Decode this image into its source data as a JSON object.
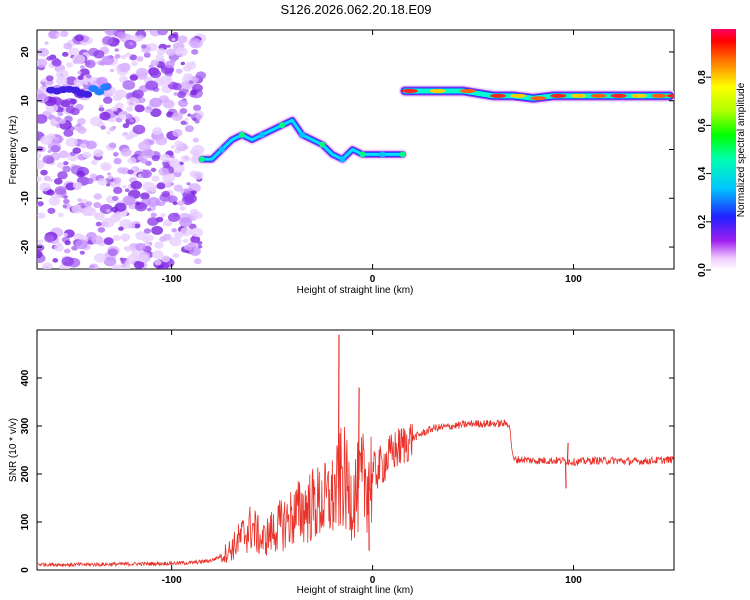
{
  "title": "S126.2026.062.20.18.E09",
  "chart_data": [
    {
      "type": "heatmap",
      "xlabel": "Height of straight line (km)",
      "ylabel": "Frequency (Hz)",
      "xlim": [
        -167,
        150
      ],
      "ylim": [
        -24.5,
        24.5
      ],
      "xticks": [
        -100,
        0,
        100
      ],
      "yticks": [
        -20,
        -10,
        0,
        10,
        20
      ],
      "colorbar": {
        "label": "Normalized spectral amplitude",
        "range": [
          0,
          1
        ],
        "ticks": [
          "0.0",
          "0.2",
          "0.4",
          "0.6",
          "0.8"
        ]
      },
      "track": {
        "segment1": [
          [
            -85,
            -2
          ],
          [
            -80,
            -2
          ],
          [
            -75,
            0
          ],
          [
            -70,
            2
          ],
          [
            -65,
            3
          ],
          [
            -60,
            2
          ],
          [
            -55,
            3
          ],
          [
            -50,
            4
          ],
          [
            -45,
            5
          ],
          [
            -40,
            6
          ],
          [
            -35,
            3
          ],
          [
            -30,
            2
          ],
          [
            -25,
            1
          ],
          [
            -20,
            -1
          ],
          [
            -15,
            -2
          ],
          [
            -10,
            0
          ],
          [
            -5,
            -1
          ],
          [
            0,
            -1
          ],
          [
            5,
            -1
          ],
          [
            10,
            -1
          ],
          [
            15,
            -1
          ]
        ],
        "segment2": [
          [
            16,
            12
          ],
          [
            30,
            12
          ],
          [
            45,
            12
          ],
          [
            60,
            11
          ],
          [
            70,
            11
          ],
          [
            80,
            10.5
          ],
          [
            90,
            11
          ],
          [
            100,
            11
          ],
          [
            110,
            11
          ],
          [
            120,
            11
          ],
          [
            130,
            11
          ],
          [
            140,
            11
          ],
          [
            148,
            11
          ]
        ]
      }
    },
    {
      "type": "line",
      "xlabel": "Height of straight line (km)",
      "ylabel": "SNR (10 * v/v)",
      "xlim": [
        -167,
        150
      ],
      "ylim": [
        0,
        500
      ],
      "xticks": [
        -100,
        0,
        100
      ],
      "yticks": [
        0,
        100,
        200,
        300,
        400
      ],
      "series": [
        {
          "color": "#e8322a",
          "x": [
            -167,
            -150,
            -130,
            -110,
            -90,
            -80,
            -75,
            -70,
            -65,
            -60,
            -55,
            -50,
            -45,
            -40,
            -35,
            -30,
            -25,
            -20,
            -17,
            -15,
            -12,
            -10,
            -7,
            -5,
            -3,
            0,
            5,
            10,
            15,
            20,
            25,
            30,
            40,
            50,
            60,
            68,
            70,
            75,
            80,
            85,
            90,
            95,
            100,
            110,
            120,
            130,
            140,
            150
          ],
          "values": [
            12,
            11,
            12,
            13,
            15,
            20,
            30,
            45,
            70,
            90,
            60,
            80,
            95,
            110,
            125,
            135,
            140,
            150,
            170,
            200,
            160,
            150,
            170,
            180,
            190,
            200,
            220,
            245,
            260,
            275,
            285,
            295,
            300,
            305,
            305,
            305,
            230,
            230,
            228,
            228,
            228,
            228,
            225,
            228,
            228,
            226,
            228,
            230
          ],
          "spikes": [
            [
              -17,
              490
            ],
            [
              -7,
              380
            ],
            [
              -2,
              40
            ],
            [
              96,
              170
            ],
            [
              97,
              265
            ]
          ]
        }
      ]
    }
  ]
}
